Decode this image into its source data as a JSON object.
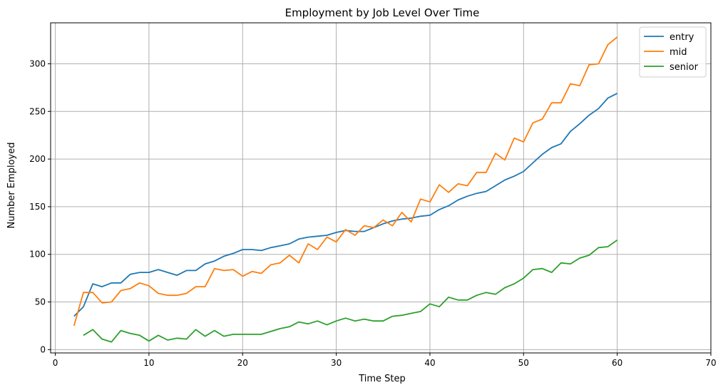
{
  "chart_data": {
    "type": "line",
    "title": "Employment by Job Level Over Time",
    "xlabel": "Time Step",
    "ylabel": "Number Employed",
    "xlim": [
      -0.5,
      70
    ],
    "ylim": [
      -3.5,
      343
    ],
    "xticks": [
      0,
      10,
      20,
      30,
      40,
      50,
      60,
      70
    ],
    "yticks": [
      0,
      50,
      100,
      150,
      200,
      250,
      300
    ],
    "grid": true,
    "legend_position": "top-right",
    "series": [
      {
        "name": "entry",
        "color": "#1f77b4",
        "x": [
          2,
          3,
          4,
          5,
          6,
          7,
          8,
          9,
          10,
          11,
          12,
          13,
          14,
          15,
          16,
          17,
          18,
          19,
          20,
          21,
          22,
          23,
          24,
          25,
          26,
          27,
          28,
          29,
          30,
          31,
          32,
          33,
          34,
          35,
          36,
          37,
          38,
          39,
          40,
          41,
          42,
          43,
          44,
          45,
          46,
          47,
          48,
          49,
          50,
          51,
          52,
          53,
          54,
          55,
          56,
          57,
          58,
          59,
          60
        ],
        "values": [
          35,
          45,
          69,
          66,
          70,
          70,
          79,
          81,
          81,
          84,
          81,
          78,
          83,
          83,
          90,
          93,
          98,
          101,
          105,
          105,
          104,
          107,
          109,
          111,
          116,
          118,
          119,
          120,
          123,
          125,
          124,
          124,
          128,
          132,
          135,
          137,
          138,
          140,
          141,
          147,
          151,
          157,
          161,
          164,
          166,
          172,
          178,
          182,
          187,
          196,
          205,
          212,
          216,
          229,
          237,
          246,
          253,
          264,
          269
        ]
      },
      {
        "name": "mid",
        "color": "#ff7f0e",
        "x": [
          2,
          3,
          4,
          5,
          6,
          7,
          8,
          9,
          10,
          11,
          12,
          13,
          14,
          15,
          16,
          17,
          18,
          19,
          20,
          21,
          22,
          23,
          24,
          25,
          26,
          27,
          28,
          29,
          30,
          31,
          32,
          33,
          34,
          35,
          36,
          37,
          38,
          39,
          40,
          41,
          42,
          43,
          44,
          45,
          46,
          47,
          48,
          49,
          50,
          51,
          52,
          53,
          54,
          55,
          56,
          57,
          58,
          59,
          60
        ],
        "values": [
          25,
          60,
          60,
          49,
          50,
          62,
          64,
          70,
          67,
          59,
          57,
          57,
          59,
          66,
          66,
          85,
          83,
          84,
          77,
          82,
          80,
          89,
          91,
          99,
          91,
          111,
          105,
          118,
          113,
          126,
          120,
          130,
          128,
          136,
          130,
          144,
          134,
          158,
          155,
          173,
          165,
          174,
          172,
          186,
          186,
          206,
          199,
          222,
          218,
          238,
          242,
          259,
          259,
          279,
          277,
          299,
          300,
          320,
          328
        ]
      },
      {
        "name": "senior",
        "color": "#2ca02c",
        "x": [
          3,
          4,
          5,
          6,
          7,
          8,
          9,
          10,
          11,
          12,
          13,
          14,
          15,
          16,
          17,
          18,
          19,
          20,
          21,
          22,
          23,
          24,
          25,
          26,
          27,
          28,
          29,
          30,
          31,
          32,
          33,
          34,
          35,
          36,
          37,
          38,
          39,
          40,
          41,
          42,
          43,
          44,
          45,
          46,
          47,
          48,
          49,
          50,
          51,
          52,
          53,
          54,
          55,
          56,
          57,
          58,
          59,
          60
        ],
        "values": [
          15,
          21,
          11,
          8,
          20,
          17,
          15,
          9,
          15,
          10,
          12,
          11,
          21,
          14,
          20,
          14,
          16,
          16,
          16,
          16,
          19,
          22,
          24,
          29,
          27,
          30,
          26,
          30,
          33,
          30,
          32,
          30,
          30,
          35,
          36,
          38,
          40,
          48,
          45,
          55,
          52,
          52,
          57,
          60,
          58,
          65,
          69,
          75,
          84,
          85,
          81,
          91,
          90,
          96,
          99,
          107,
          108,
          115
        ]
      }
    ]
  }
}
